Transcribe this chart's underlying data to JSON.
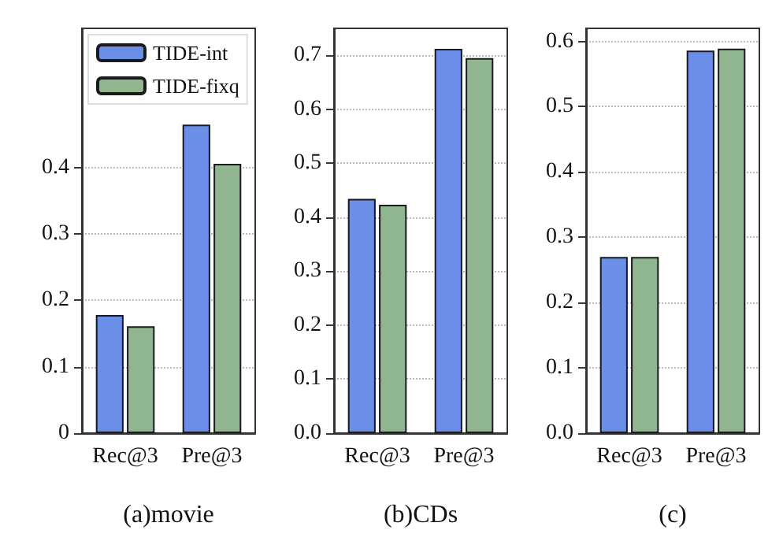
{
  "chart_data": [
    {
      "type": "bar",
      "xlabel": "(a)movie",
      "categories": [
        "Rec@3",
        "Pre@3"
      ],
      "series": [
        {
          "name": "TIDE-int",
          "color": "#6b8ee8",
          "values": [
            0.178,
            0.465
          ]
        },
        {
          "name": "TIDE-fixq",
          "color": "#90b690",
          "values": [
            0.161,
            0.406
          ]
        }
      ],
      "ylim": [
        0,
        0.61
      ],
      "yticks": [
        0,
        0.1,
        0.2,
        0.3,
        0.4
      ],
      "grid": "y",
      "legend": "top left"
    },
    {
      "type": "bar",
      "xlabel": "(b)CDs",
      "categories": [
        "Rec@3",
        "Pre@3"
      ],
      "series": [
        {
          "color": "#6b8ee8",
          "values": [
            0.434,
            0.712
          ]
        },
        {
          "color": "#90b690",
          "values": [
            0.423,
            0.695
          ]
        }
      ],
      "ylim": [
        0,
        0.75
      ],
      "yticks": [
        {
          "value": 0,
          "label": "0.0"
        },
        0.1,
        0.2,
        0.3,
        0.4,
        0.5,
        0.6,
        0.7
      ],
      "grid": "y"
    },
    {
      "type": "bar",
      "xlabel": "(c)",
      "categories": [
        "Rec@3",
        "Pre@3"
      ],
      "series": [
        {
          "color": "#6b8ee8",
          "values": [
            0.27,
            0.586
          ]
        },
        {
          "color": "#90b690",
          "values": [
            0.27,
            0.589
          ]
        }
      ],
      "ylim": [
        0,
        0.62
      ],
      "yticks": [
        {
          "value": 0,
          "label": "0.0"
        },
        0.1,
        0.2,
        0.3,
        0.4,
        0.5,
        0.6
      ],
      "grid": "y"
    }
  ]
}
